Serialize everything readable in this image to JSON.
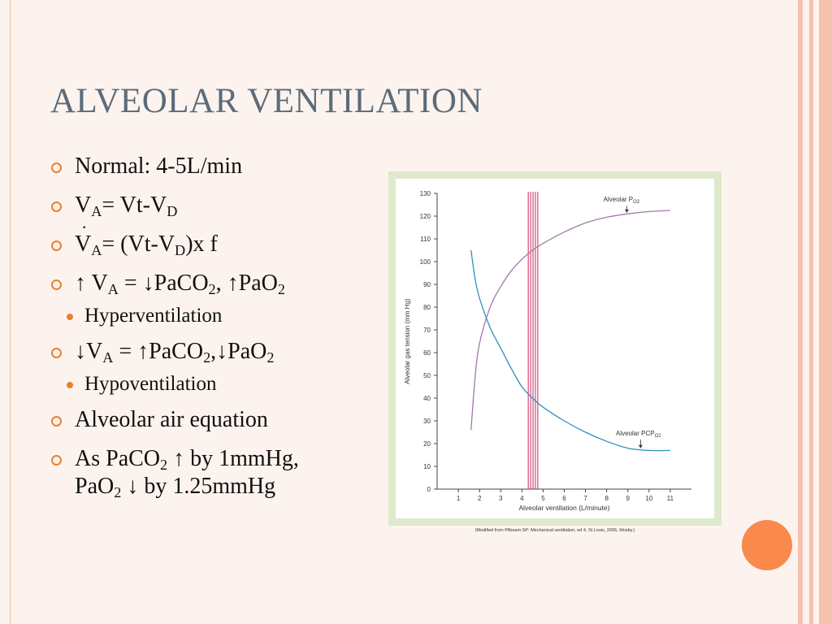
{
  "slide": {
    "title": "ALVEOLAR VENTILATION",
    "bullets": [
      {
        "text": "Normal: 4-5L/min"
      },
      {
        "parts": [
          "V",
          "A",
          "= Vt-V",
          "D"
        ]
      },
      {
        "parts": [
          "V",
          "A",
          "= (Vt-V",
          "D",
          ")x f"
        ]
      },
      {
        "parts": [
          "↑ V",
          "A",
          " = ↓PaCO",
          "2",
          ", ↑PaO",
          "2"
        ],
        "sub": "Hyperventilation"
      },
      {
        "parts": [
          "↓V",
          "A",
          " = ↑PaCO",
          "2",
          ",↓PaO",
          "2"
        ],
        "sub": "Hypoventilation"
      },
      {
        "text": "Alveolar air equation"
      },
      {
        "parts": [
          "As PaCO",
          "2",
          " ↑  by 1mmHg, PaO",
          "2",
          " ↓ by 1.25mmHg"
        ]
      }
    ],
    "credit": "(Modified from Pilbeam SP: Mechanical ventilation, ed 4, St Louis, 2006, Mosby.)"
  },
  "colors": {
    "accent": "#e8812f",
    "title": "#5b6b7a",
    "po2_curve": "#a07aa8",
    "pco2_curve": "#2f8fbf",
    "normal_band": "#c8285a"
  },
  "chart_data": {
    "type": "line",
    "xlabel": "Alveolar ventilation (L/minute)",
    "ylabel": "Alveolar gas tension (mm Hg)",
    "xlim": [
      0,
      12
    ],
    "ylim": [
      0,
      130
    ],
    "x_ticks": [
      1,
      2,
      3,
      4,
      5,
      6,
      7,
      8,
      9,
      10,
      11
    ],
    "y_ticks": [
      0,
      10,
      20,
      30,
      40,
      50,
      60,
      70,
      80,
      90,
      100,
      110,
      120,
      130
    ],
    "series": [
      {
        "name": "Alveolar PO2",
        "x": [
          1.6,
          1.8,
          2.0,
          2.5,
          3.0,
          3.5,
          4.0,
          4.5,
          5.0,
          6.0,
          7.0,
          8.0,
          9.0,
          10.0,
          11.0
        ],
        "values": [
          26,
          50,
          64,
          80,
          89,
          96,
          101,
          105,
          108,
          113,
          117,
          119.5,
          121,
          122,
          122.5
        ]
      },
      {
        "name": "Alveolar PCO2",
        "x": [
          1.6,
          1.8,
          2.0,
          2.5,
          3.0,
          3.5,
          4.0,
          4.5,
          5.0,
          6.0,
          7.0,
          8.0,
          9.0,
          10.0,
          11.0
        ],
        "values": [
          105,
          92,
          84,
          71,
          62,
          53,
          45,
          40,
          36,
          30,
          25,
          21,
          18,
          17,
          17
        ]
      }
    ],
    "normal_band": {
      "x_start": 4.3,
      "x_end": 4.75,
      "line_count": 5
    }
  }
}
